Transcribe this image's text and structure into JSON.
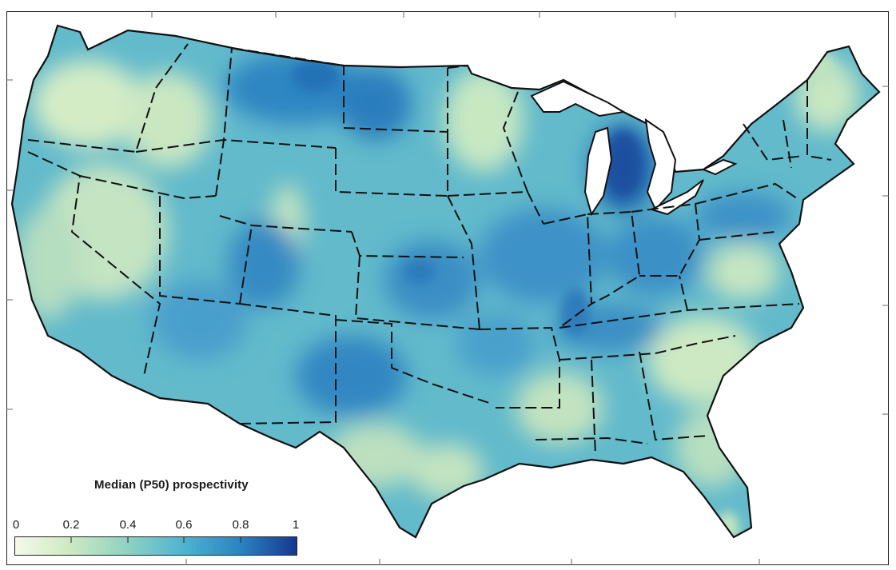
{
  "legend": {
    "title": "Median (P50) prospectivity",
    "ticks": [
      "0",
      "0.2",
      "0.4",
      "0.6",
      "0.8",
      "1"
    ],
    "min": 0,
    "max": 1,
    "colormap": [
      "#f4f9e6",
      "#c8e6bf",
      "#8fd0c0",
      "#4fb2cf",
      "#2a86c0",
      "#17449a"
    ]
  },
  "colors": {
    "land_low": "#d6eecb",
    "land_mid": "#6cc0cf",
    "land_high": "#2f7fbe",
    "land_max": "#1c5aa6",
    "border": "#111111",
    "background": "#ffffff"
  }
}
